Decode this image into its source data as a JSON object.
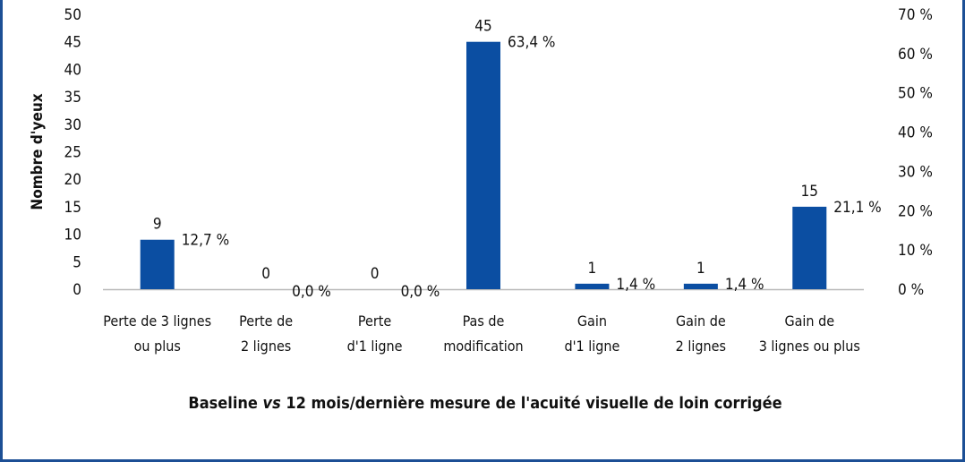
{
  "chart_data": {
    "type": "bar",
    "categories": [
      [
        "Perte de 3 lignes",
        "ou plus"
      ],
      [
        "Perte de",
        "2 lignes"
      ],
      [
        "Perte",
        "d'1 ligne"
      ],
      [
        "Pas de",
        "modification"
      ],
      [
        "Gain",
        "d'1 ligne"
      ],
      [
        "Gain de",
        "2 lignes"
      ],
      [
        "Gain de",
        "3 lignes ou plus"
      ]
    ],
    "values": [
      9,
      0,
      0,
      45,
      1,
      1,
      15
    ],
    "percent_labels": [
      "12,7 %",
      "0,0 %",
      "0,0 %",
      "63,4 %",
      "1,4 %",
      "1,4 %",
      "21,1 %"
    ],
    "ylabel": "Nombre d'yeux",
    "ylim": [
      0,
      50
    ],
    "yticks": [
      "0",
      "5",
      "10",
      "15",
      "20",
      "25",
      "30",
      "35",
      "40",
      "45",
      "50"
    ],
    "y2lim": [
      0,
      70
    ],
    "y2ticks": [
      "0 %",
      "10 %",
      "20 %",
      "30 %",
      "40 %",
      "50 %",
      "60 %",
      "70 %"
    ],
    "bar_color": "#0b4ea2",
    "grid": false
  },
  "xaxis_title": {
    "pre": "Baseline ",
    "italic": "vs",
    "post": " 12 mois/dernière mesure de l'acuité visuelle de loin corrigée"
  }
}
